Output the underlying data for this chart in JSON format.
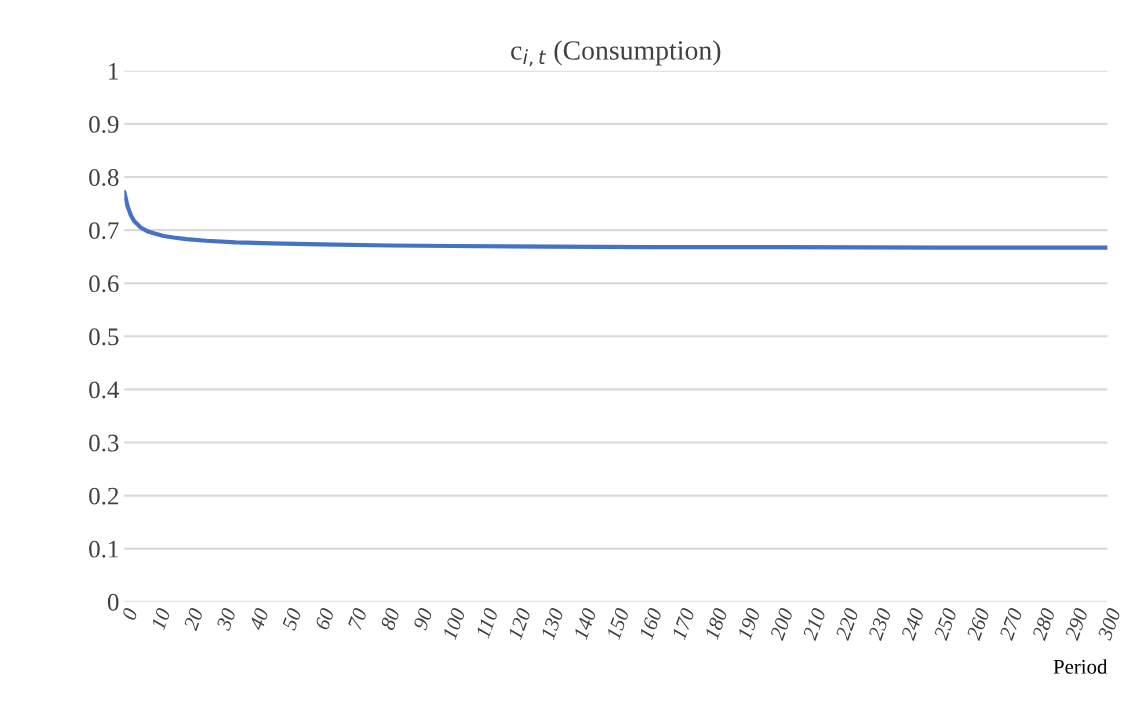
{
  "chart_data": {
    "type": "line",
    "title": "c$_{i,t}$ (Consumption)",
    "xlabel": "Period",
    "x": [
      0,
      1,
      2,
      3,
      5,
      7,
      9,
      12,
      15,
      19,
      25,
      34,
      45,
      60,
      81,
      100,
      130,
      160,
      200,
      250,
      300
    ],
    "series": [
      {
        "color": "#4472c4",
        "values": [
          0.772,
          0.745,
          0.728,
          0.717,
          0.705,
          0.698,
          0.694,
          0.689,
          0.686,
          0.683,
          0.68,
          0.677,
          0.675,
          0.673,
          0.671,
          0.67,
          0.669,
          0.668,
          0.668,
          0.667,
          0.667
        ]
      }
    ],
    "xlim": [
      0,
      300
    ],
    "xticks": [
      0,
      10,
      20,
      30,
      40,
      50,
      60,
      70,
      80,
      90,
      100,
      110,
      120,
      130,
      140,
      150,
      160,
      170,
      180,
      190,
      200,
      210,
      220,
      230,
      240,
      250,
      260,
      270,
      280,
      290,
      300
    ],
    "ylim": [
      0,
      1
    ],
    "yticks": [
      0,
      0.1,
      0.2,
      0.3,
      0.4,
      0.5,
      0.6,
      0.7,
      0.8,
      0.9,
      1
    ],
    "grid": "y",
    "legend": false,
    "marker": "none",
    "line_style": "solid"
  }
}
